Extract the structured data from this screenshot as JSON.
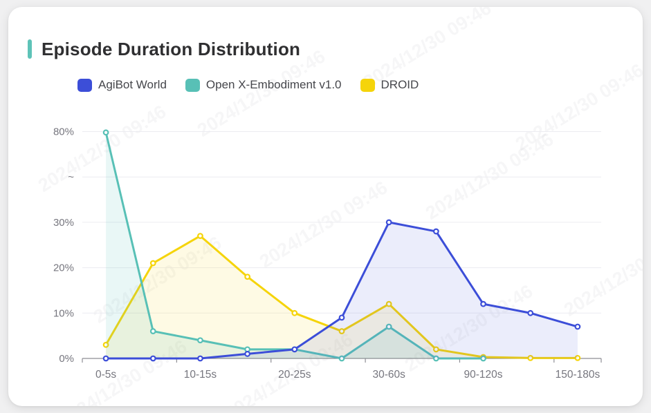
{
  "page": {
    "background_color": "#F0F0F1",
    "watermark_text": "2024/12/30 09:46"
  },
  "header": {
    "title": "Episode Duration Distribution",
    "accent_color": "#5EC3B8"
  },
  "chart_data": {
    "type": "line",
    "title": "Episode Duration Distribution",
    "unit": "%",
    "grid": true,
    "legend_position": "top",
    "n_points": 11,
    "x_labels": [
      "0-5s",
      "10-15s",
      "20-25s",
      "30-60s",
      "90-120s",
      "150-180s"
    ],
    "x_label_point_indices": [
      0,
      2,
      4,
      6,
      8,
      10
    ],
    "y_tick_labels": [
      "0%",
      "10%",
      "20%",
      "30%",
      "~",
      "80%"
    ],
    "y_axis_break_between": [
      "30%",
      "80%"
    ],
    "y_axis_values_at_ticks": [
      0,
      10,
      20,
      30,
      null,
      80
    ],
    "series": [
      {
        "name": "AgiBot World",
        "color": "#3C4ED8",
        "area_opacity": 0.1,
        "values": [
          0,
          0,
          0,
          1,
          2,
          9,
          30,
          28,
          12,
          10,
          7
        ]
      },
      {
        "name": "Open X-Embodiment v1.0",
        "color": "#58C0B6",
        "area_opacity": 0.13,
        "values": [
          79.5,
          6,
          4,
          2,
          2,
          0,
          7,
          0,
          0,
          null,
          null
        ]
      },
      {
        "name": "DROID",
        "color": "#F5D40A",
        "area_opacity": 0.11,
        "values": [
          3,
          21,
          27,
          18,
          10,
          6,
          12,
          2,
          0.3,
          0.1,
          0.1
        ]
      }
    ],
    "axis_colors": {
      "axis_line": "#8E8E95",
      "grid_line": "#ECECF1",
      "tick_label": "#76767E"
    }
  }
}
